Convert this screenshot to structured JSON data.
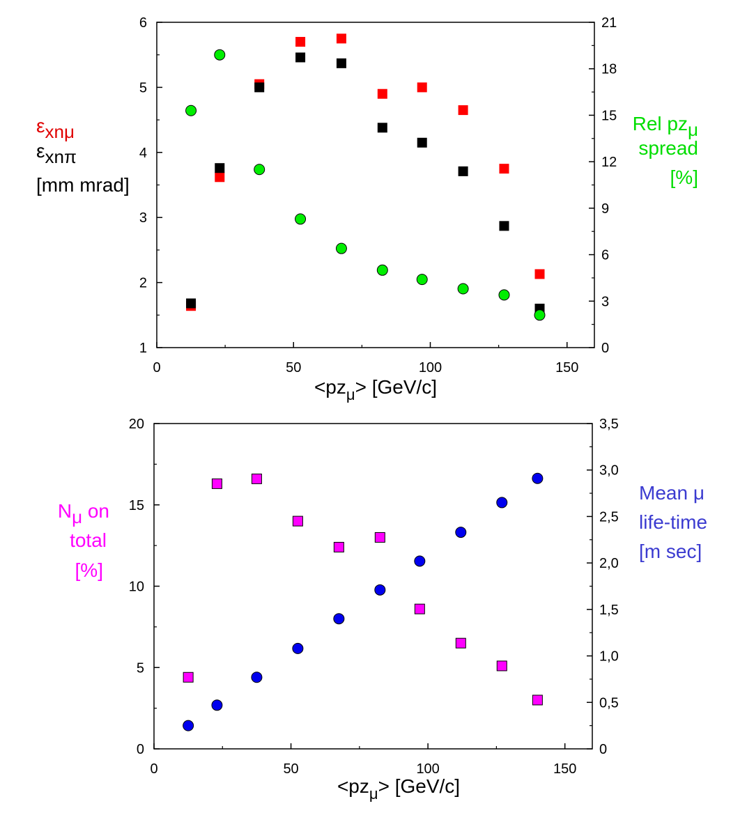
{
  "chart_data": [
    {
      "type": "scatter",
      "x_label": {
        "main": "<pz",
        "sub": "μ",
        "after": ">  [GeV/c]"
      },
      "xlim": [
        0,
        160
      ],
      "x_ticks": [
        "0",
        "50",
        "100",
        "150"
      ],
      "ylim_left": [
        1,
        6
      ],
      "y_ticks_left": [
        "1",
        "2",
        "3",
        "4",
        "5",
        "6"
      ],
      "ylim_right": [
        0,
        21
      ],
      "y_ticks_right": [
        "0",
        "3",
        "6",
        "9",
        "12",
        "15",
        "18",
        "21"
      ],
      "left_label": {
        "line1": {
          "main": "ε",
          "sub": "xnμ"
        },
        "line2": {
          "main": "ε",
          "sub": "xnπ"
        },
        "line3": "[mm mrad]"
      },
      "right_label": {
        "line1": {
          "main": "Rel pz",
          "sub": "μ"
        },
        "line2": "spread",
        "line3": "[%]"
      },
      "series": [
        {
          "name": "εxnμ",
          "axis": "left",
          "marker": "square",
          "color": "#ff0000",
          "x": [
            12.5,
            23,
            37.5,
            52.5,
            67.5,
            82.5,
            97,
            112,
            127,
            140
          ],
          "y": [
            1.64,
            3.62,
            5.05,
            5.7,
            5.75,
            4.9,
            5.0,
            4.65,
            3.75,
            2.13
          ]
        },
        {
          "name": "εxnπ",
          "axis": "left",
          "marker": "square",
          "color": "#000000",
          "x": [
            12.5,
            23,
            37.5,
            52.5,
            67.5,
            82.5,
            97,
            112,
            127,
            140
          ],
          "y": [
            1.68,
            3.76,
            5.0,
            5.46,
            5.37,
            4.38,
            4.15,
            3.71,
            2.87,
            1.6
          ]
        },
        {
          "name": "Rel pzμ spread",
          "axis": "right",
          "marker": "circle",
          "color": "#00ee00",
          "x": [
            12.5,
            23,
            37.5,
            52.5,
            67.5,
            82.5,
            97,
            112,
            127,
            140
          ],
          "y": [
            15.3,
            18.9,
            11.5,
            8.3,
            6.4,
            5.0,
            4.4,
            3.8,
            3.4,
            2.1
          ]
        }
      ]
    },
    {
      "type": "scatter",
      "x_label": {
        "main": "<pz",
        "sub": "μ",
        "after": ">  [GeV/c]"
      },
      "xlim": [
        0,
        160
      ],
      "x_ticks": [
        "0",
        "50",
        "100",
        "150"
      ],
      "ylim_left": [
        0,
        20
      ],
      "y_ticks_left": [
        "0",
        "5",
        "10",
        "15",
        "20"
      ],
      "ylim_right": [
        0,
        3.5
      ],
      "y_ticks_right": [
        "0",
        "0,5",
        "1,0",
        "1,5",
        "2,0",
        "2,5",
        "3,0",
        "3,5"
      ],
      "left_label": {
        "line1": {
          "main": "N",
          "sub": "μ",
          "after": " on"
        },
        "line2": "total",
        "line3": "[%]"
      },
      "right_label": {
        "line1": "Mean μ",
        "line2": "life-time",
        "line3": "[m sec]"
      },
      "series": [
        {
          "name": "Nμ on total",
          "axis": "left",
          "marker": "square",
          "color": "#ff00ff",
          "x": [
            12.5,
            23,
            37.5,
            52.5,
            67.5,
            82.5,
            97,
            112,
            127,
            140
          ],
          "y": [
            4.4,
            16.3,
            16.6,
            14.0,
            12.4,
            13.0,
            8.6,
            6.5,
            5.1,
            3.0
          ]
        },
        {
          "name": "Mean μ life-time",
          "axis": "right",
          "marker": "circle",
          "color": "#0000ee",
          "x": [
            12.5,
            23,
            37.5,
            52.5,
            67.5,
            82.5,
            97,
            112,
            127,
            140
          ],
          "y": [
            0.25,
            0.47,
            0.77,
            1.08,
            1.4,
            1.71,
            2.02,
            2.33,
            2.65,
            2.91
          ]
        }
      ]
    }
  ]
}
